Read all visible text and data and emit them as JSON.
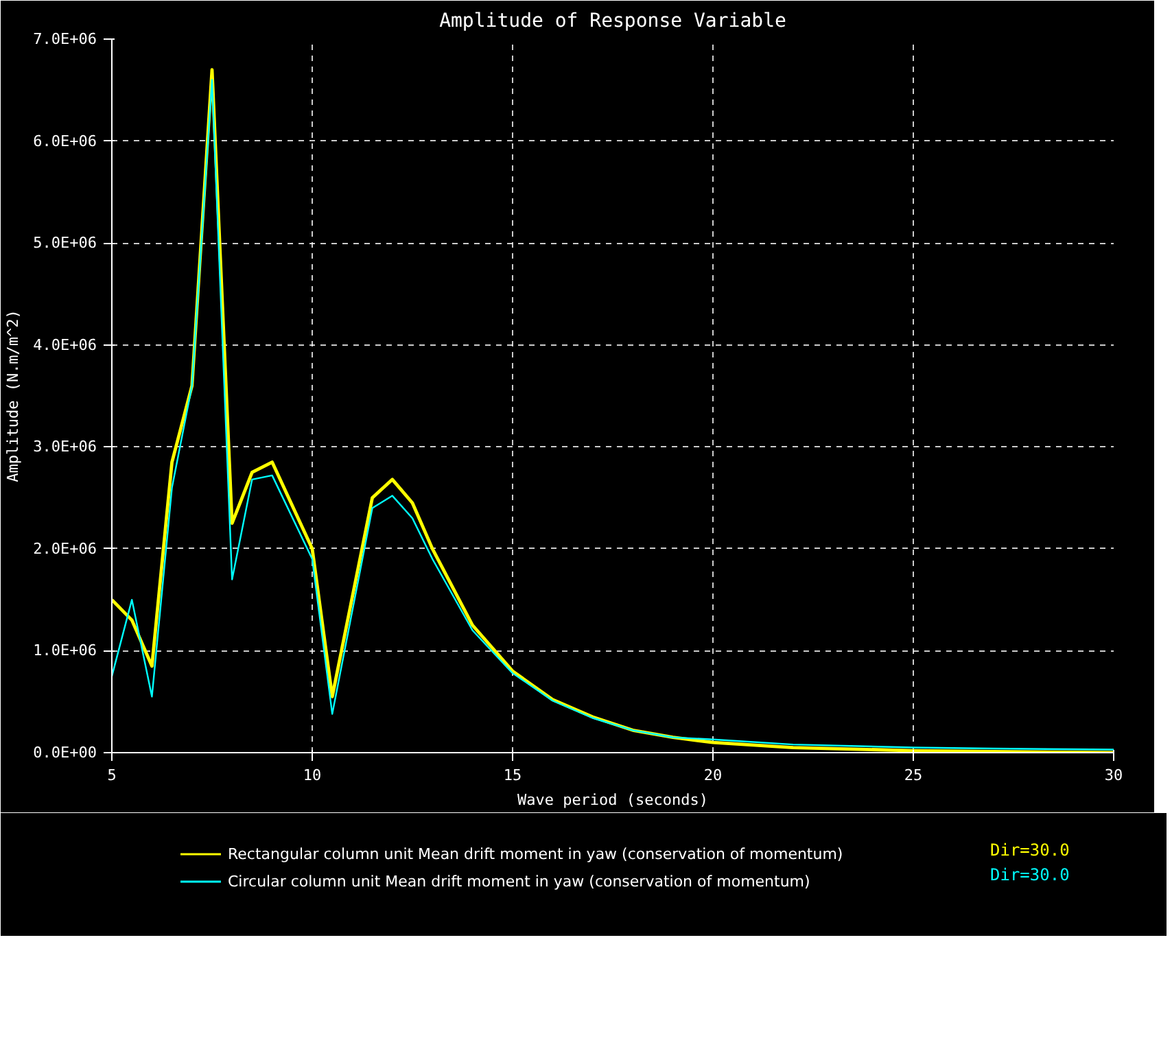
{
  "chart_data": {
    "type": "line",
    "title": "Amplitude of Response Variable",
    "xlabel": "Wave period (seconds)",
    "ylabel": "Amplitude (N.m/m^2)",
    "x": [
      5,
      5.5,
      6,
      6.5,
      7,
      7.5,
      8,
      8.5,
      9,
      10,
      10.5,
      11.5,
      12,
      12.5,
      13,
      14,
      15,
      16,
      17,
      18,
      19,
      20,
      22,
      25,
      27,
      30
    ],
    "series": [
      {
        "name": "Rectangular column unit Mean drift moment in yaw (conservation of momentum)",
        "color": "#ffff00",
        "values": [
          1500000,
          1300000,
          850000,
          2850000,
          3600000,
          6700000,
          2250000,
          2750000,
          2850000,
          2000000,
          550000,
          2500000,
          2680000,
          2450000,
          2000000,
          1250000,
          800000,
          520000,
          350000,
          220000,
          150000,
          100000,
          50000,
          20000,
          10000,
          0
        ]
      },
      {
        "name": "Circular column unit Mean drift moment in yaw (conservation of momentum)",
        "color": "#00ffff",
        "values": [
          750000,
          1500000,
          550000,
          2600000,
          3600000,
          6600000,
          1700000,
          2680000,
          2720000,
          1900000,
          380000,
          2400000,
          2520000,
          2300000,
          1900000,
          1200000,
          780000,
          510000,
          340000,
          220000,
          150000,
          130000,
          80000,
          50000,
          40000,
          30000
        ]
      }
    ],
    "annotations": [
      "Dir=30.0",
      "Dir=30.0"
    ],
    "xlim": [
      5,
      30
    ],
    "xticks": [
      5,
      10,
      15,
      20,
      25,
      30
    ],
    "ylim": [
      0,
      7000000
    ],
    "yticks": [
      {
        "value": 0,
        "label": "0.0E+00"
      },
      {
        "value": 1000000,
        "label": "1.0E+06"
      },
      {
        "value": 2000000,
        "label": "2.0E+06"
      },
      {
        "value": 3000000,
        "label": "3.0E+06"
      },
      {
        "value": 4000000,
        "label": "4.0E+06"
      },
      {
        "value": 5000000,
        "label": "5.0E+06"
      },
      {
        "value": 6000000,
        "label": "6.0E+06"
      },
      {
        "value": 7000000,
        "label": "7.0E+06"
      }
    ],
    "grid": true,
    "legend": "bottom",
    "marker": "none",
    "line_style": "solid"
  }
}
